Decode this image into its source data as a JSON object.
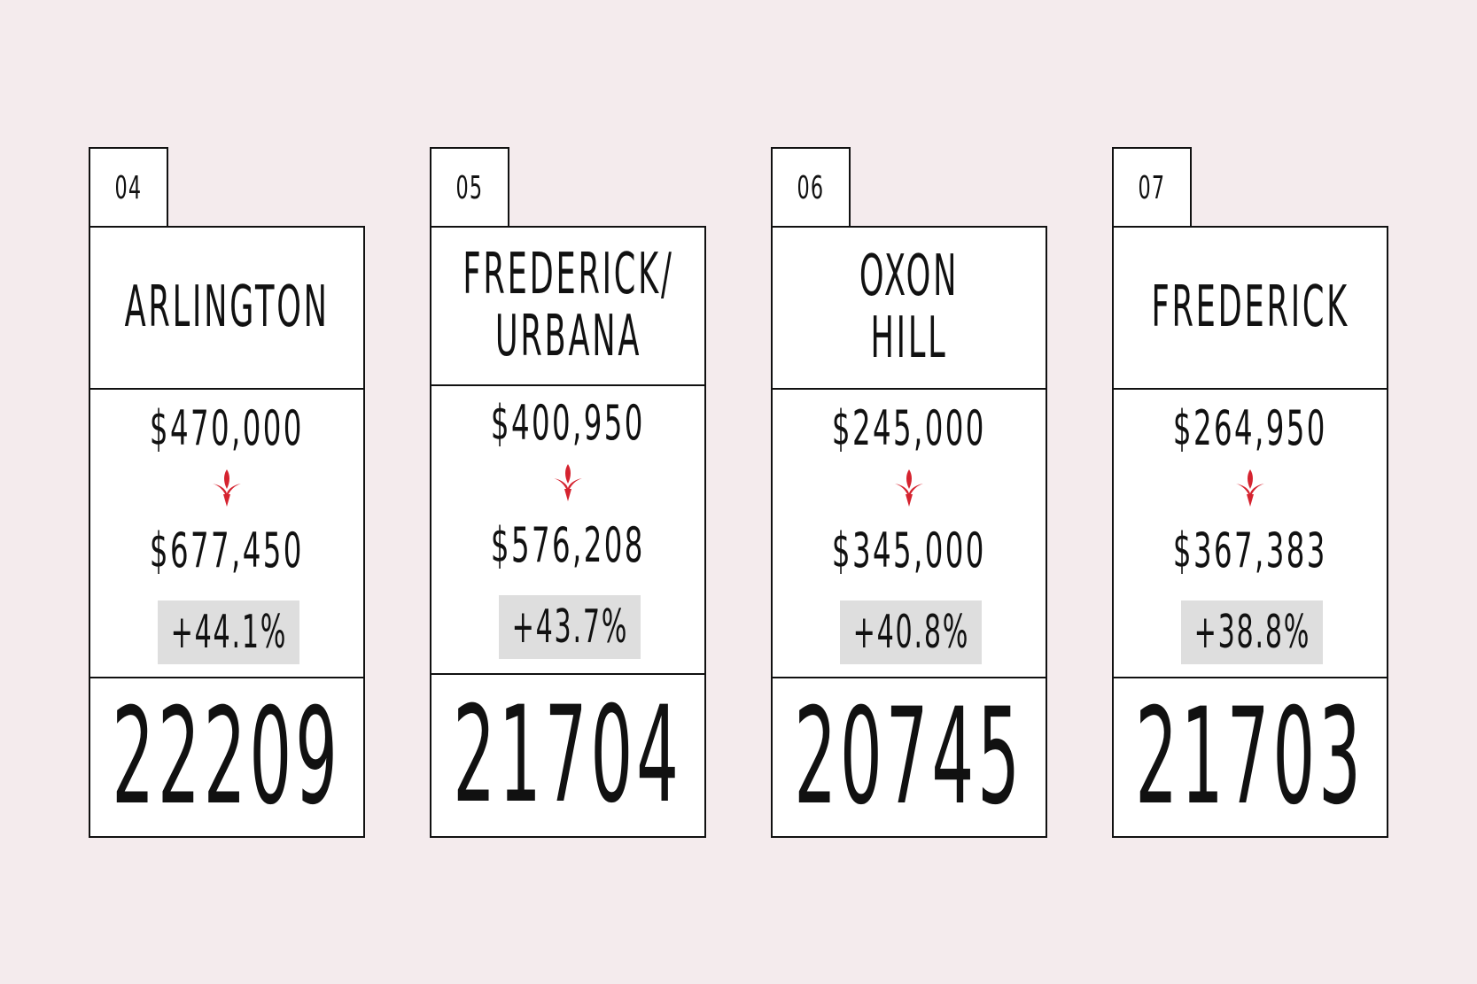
{
  "colors": {
    "background": "#f4ebed",
    "card": "#ffffff",
    "border": "#111111",
    "arrow": "#d5232f",
    "percent_highlight": "#dedede"
  },
  "cards": [
    {
      "rank": "04",
      "name": "ARLINGTON",
      "price_from": "$470,000",
      "price_to": "$677,450",
      "percent_change": "+44.1%",
      "zip": "22209",
      "arrow_icon": "down-arrow-icon"
    },
    {
      "rank": "05",
      "name": "FREDERICK/\nURBANA",
      "price_from": "$400,950",
      "price_to": "$576,208",
      "percent_change": "+43.7%",
      "zip": "21704",
      "arrow_icon": "down-arrow-icon"
    },
    {
      "rank": "06",
      "name": "OXON HILL",
      "price_from": "$245,000",
      "price_to": "$345,000",
      "percent_change": "+40.8%",
      "zip": "20745",
      "arrow_icon": "down-arrow-icon"
    },
    {
      "rank": "07",
      "name": "FREDERICK",
      "price_from": "$264,950",
      "price_to": "$367,383",
      "percent_change": "+38.8%",
      "zip": "21703",
      "arrow_icon": "down-arrow-icon"
    }
  ]
}
